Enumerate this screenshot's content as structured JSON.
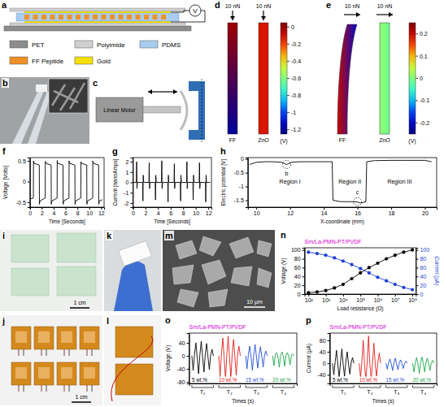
{
  "chart_data": [
    {
      "type": "line",
      "x_label": "Time [Seconds]",
      "y_label": "Voltage [Volts]",
      "xlim": [
        0,
        12.5
      ],
      "xticks": [
        0,
        2,
        4,
        6,
        8,
        10,
        12
      ],
      "ylim": [
        -0.62,
        0.58
      ],
      "yticks": [
        -0.5,
        0,
        0.5
      ],
      "x": [
        0,
        0.58,
        0.6,
        0.7,
        1.58,
        1.6,
        1.7,
        2.58,
        2.6,
        2.7,
        3.58,
        3.6,
        3.7,
        4.58,
        4.6,
        4.7,
        5.58,
        5.6,
        5.7,
        6.58,
        6.6,
        6.7,
        7.58,
        7.6,
        7.7,
        8.58,
        8.6,
        8.7,
        9.58,
        9.6,
        9.7,
        10.58,
        10.6,
        10.7,
        11.58,
        11.6,
        11.7,
        12.2
      ],
      "series": [
        {
          "color": "#000000",
          "values": [
            -0.42,
            -0.4,
            0.5,
            0.44,
            0.4,
            -0.55,
            -0.47,
            -0.4,
            0.49,
            0.44,
            0.4,
            -0.55,
            -0.47,
            -0.4,
            0.51,
            0.44,
            0.4,
            -0.55,
            -0.47,
            -0.4,
            0.5,
            0.44,
            0.4,
            -0.55,
            -0.47,
            -0.4,
            0.48,
            0.44,
            0.4,
            -0.55,
            -0.47,
            -0.4,
            0.5,
            0.44,
            0.4,
            -0.55,
            -0.47,
            -0.44
          ]
        }
      ]
    },
    {
      "type": "line",
      "x_label": "Time [Seconds]",
      "y_label": "Current [nanoAmps]",
      "xlim": [
        0,
        12.5
      ],
      "xticks": [
        0,
        2,
        4,
        6,
        8,
        10,
        12
      ],
      "ylim": [
        -2.4,
        2.4
      ],
      "yticks": [
        -2,
        -1,
        0,
        1,
        2
      ],
      "x": [
        0,
        0.55,
        0.6,
        0.65,
        0.72,
        1.55,
        1.6,
        1.65,
        1.72,
        2.55,
        2.6,
        2.65,
        2.72,
        3.55,
        3.6,
        3.65,
        3.72,
        4.55,
        4.6,
        4.65,
        4.72,
        5.55,
        5.6,
        5.65,
        5.72,
        6.55,
        6.6,
        6.65,
        6.72,
        7.55,
        7.6,
        7.65,
        7.72,
        8.55,
        8.6,
        8.65,
        8.72,
        9.55,
        9.6,
        9.65,
        9.72,
        10.55,
        10.6,
        10.65,
        10.72,
        11.55,
        11.6,
        11.65,
        11.72,
        12.3
      ],
      "series": [
        {
          "color": "#000000",
          "values": [
            0,
            0,
            2.0,
            -0.6,
            0,
            0,
            -1.8,
            0.7,
            0,
            0,
            1.9,
            -0.6,
            0,
            0,
            -1.7,
            0.7,
            0,
            0,
            2.1,
            -0.6,
            0,
            0,
            -1.9,
            0.7,
            0,
            0,
            1.8,
            -0.6,
            0,
            0,
            -1.8,
            0.7,
            0,
            0,
            2.0,
            -0.6,
            0,
            0,
            -1.7,
            0.7,
            0,
            0,
            1.9,
            -0.6,
            0,
            0,
            -1.9,
            0.7,
            0,
            0
          ]
        }
      ]
    },
    {
      "type": "line",
      "x_label": "X-coordinate (mm)",
      "y_label": "Electric potential [V]",
      "xlim": [
        9.5,
        20.7
      ],
      "xticks": [
        10,
        12,
        14,
        16,
        18,
        20
      ],
      "ylim": [
        -1.75,
        0.05
      ],
      "yticks": [
        -1.5,
        -1,
        -0.5,
        0
      ],
      "x": [
        9.6,
        10,
        10.5,
        11,
        11.5,
        11.8,
        12.1,
        12.5,
        13,
        13.5,
        14,
        14.5,
        14.55,
        15,
        15.5,
        16,
        16.2,
        16.5,
        16.55,
        17,
        18,
        19,
        20,
        20.4
      ],
      "series": [
        {
          "color": "#000000",
          "values": [
            -0.2,
            -0.12,
            -0.1,
            -0.1,
            -0.12,
            -0.2,
            -0.12,
            -0.1,
            -0.1,
            -0.1,
            -0.1,
            -0.1,
            -1.5,
            -1.55,
            -1.55,
            -1.56,
            -1.6,
            -1.55,
            -0.1,
            -0.06,
            -0.05,
            -0.05,
            -0.05,
            -0.1
          ]
        }
      ],
      "annotations": [
        {
          "text": "Region I",
          "x": 12,
          "y": -0.9
        },
        {
          "text": "Region II",
          "x": 15.55,
          "y": -0.9
        },
        {
          "text": "Region III",
          "x": 18.5,
          "y": -0.9
        }
      ],
      "highlights": [
        {
          "text": "b",
          "x": 11.8,
          "y": -0.2
        },
        {
          "text": "c",
          "x": 16,
          "y": -1.55
        }
      ]
    },
    {
      "type": "line",
      "title": "Sm/La-PMN-PT/PVDF",
      "x_label": "Load resistance (Ω)",
      "y_label": "Voltage (V)",
      "y2_label": "Current (μA)",
      "log": "x",
      "xlim": [
        60,
        160000000
      ],
      "xticks": [
        {
          "value": 100,
          "label": "10²"
        },
        {
          "value": 1000,
          "label": "10³"
        },
        {
          "value": 10000,
          "label": "10⁴"
        },
        {
          "value": 100000,
          "label": "10⁵"
        },
        {
          "value": 1000000,
          "label": "10⁶"
        },
        {
          "value": 10000000,
          "label": "10⁷"
        },
        {
          "value": 100000000,
          "label": "10⁸"
        }
      ],
      "ylim": [
        0,
        105
      ],
      "yticks": [
        0,
        20,
        40,
        60,
        80,
        100
      ],
      "y2lim": [
        0,
        105
      ],
      "y2ticks": [
        0,
        20,
        40,
        60,
        80,
        100
      ],
      "x": [
        100,
        316,
        1000,
        3162,
        10000,
        31623,
        100000,
        316228,
        1000000,
        3162278,
        10000000,
        31622777,
        100000000
      ],
      "series": [
        {
          "color": "#000000",
          "marker": "circle",
          "values": [
            3,
            5,
            8,
            14,
            22,
            35,
            48,
            60,
            70,
            80,
            88,
            95,
            100
          ]
        },
        {
          "color": "#1f3fd6",
          "marker": "circle",
          "axis": "y2",
          "values": [
            95,
            92,
            88,
            82,
            75,
            67,
            58,
            48,
            38,
            30,
            22,
            15,
            10
          ]
        }
      ]
    },
    {
      "type": "line",
      "title": "Sm/La-PMN-PT/PVDF",
      "x_label": "Times (s)",
      "y_label": "Voltage (V)",
      "tick_labels": "y",
      "xlim": [
        0,
        40
      ],
      "ylim": [
        -85,
        70
      ],
      "yticks": [
        -80,
        -40,
        0,
        40
      ],
      "segment_labels": [
        "T₁",
        "T₂",
        "T₃",
        "T₄"
      ],
      "series": [
        {
          "name": "5 wt.%",
          "color": "#000000",
          "x": [
            1,
            1.5,
            2,
            2.5,
            3,
            3.5,
            4,
            4.5,
            5,
            5.5,
            6,
            6.5,
            7,
            7.5,
            8,
            8.5,
            9
          ],
          "values": [
            0,
            -45,
            5,
            40,
            -5,
            -55,
            4,
            45,
            -3,
            -50,
            5,
            38,
            -4,
            -42,
            3,
            20,
            0
          ]
        },
        {
          "name": "10 wt.%",
          "color": "#e0201b",
          "x": [
            11,
            11.5,
            12,
            12.5,
            13,
            13.5,
            14,
            14.5,
            15,
            15.5,
            16,
            16.5,
            17,
            17.5,
            18,
            18.5,
            19
          ],
          "values": [
            0,
            -65,
            6,
            55,
            -6,
            -75,
            5,
            60,
            -5,
            -70,
            6,
            50,
            -5,
            -60,
            4,
            30,
            0
          ]
        },
        {
          "name": "15 wt.%",
          "color": "#1f4fd6",
          "x": [
            21,
            21.5,
            22,
            22.5,
            23,
            23.5,
            24,
            24.5,
            25,
            25.5,
            26,
            26.5,
            27,
            27.5,
            28,
            28.5,
            29
          ],
          "values": [
            0,
            -40,
            4,
            30,
            -4,
            -45,
            3,
            35,
            -3,
            -38,
            4,
            28,
            -3,
            -35,
            2,
            15,
            0
          ]
        },
        {
          "name": "20 wt.%",
          "color": "#1aa64a",
          "x": [
            31,
            31.5,
            32,
            32.5,
            33,
            33.5,
            34,
            34.5,
            35,
            35.5,
            36,
            36.5,
            37,
            37.5,
            38,
            38.5,
            39
          ],
          "values": [
            0,
            -30,
            3,
            10,
            -3,
            -35,
            2,
            12,
            -2,
            -32,
            3,
            10,
            -2,
            -28,
            2,
            6,
            0
          ]
        }
      ]
    },
    {
      "type": "line",
      "title": "Sm/La-PMN-PT/PVDF",
      "x_label": "Times (s)",
      "y_label": "Current (μA)",
      "tick_labels": "y",
      "xlim": [
        0,
        40
      ],
      "ylim": [
        -70,
        105
      ],
      "yticks": [
        -40,
        0,
        40,
        80
      ],
      "segment_labels": [
        "T₁",
        "T₂",
        "T₃",
        "T₄"
      ],
      "series": [
        {
          "name": "5 wt.%",
          "color": "#000000",
          "x": [
            1,
            1.5,
            2,
            2.5,
            3,
            3.5,
            4,
            4.5,
            5,
            5.5,
            6,
            6.5,
            7,
            7.5,
            8,
            8.5,
            9
          ],
          "values": [
            0,
            -40,
            5,
            45,
            -5,
            -50,
            4,
            50,
            -4,
            -45,
            5,
            40,
            -4,
            -38,
            3,
            20,
            0
          ]
        },
        {
          "name": "10 wt.%",
          "color": "#e0201b",
          "x": [
            11,
            11.5,
            12,
            12.5,
            13,
            13.5,
            14,
            14.5,
            15,
            15.5,
            16,
            16.5,
            17,
            17.5,
            18,
            18.5,
            19
          ],
          "values": [
            0,
            -50,
            6,
            80,
            -6,
            -60,
            6,
            95,
            -5,
            -55,
            6,
            70,
            -5,
            -45,
            4,
            35,
            0
          ]
        },
        {
          "name": "15 wt.%",
          "color": "#1f4fd6",
          "x": [
            21,
            21.5,
            22,
            22.5,
            23,
            23.5,
            24,
            24.5,
            25,
            25.5,
            26,
            26.5,
            27,
            27.5,
            28,
            28.5,
            29
          ],
          "values": [
            0,
            -20,
            2,
            15,
            -2,
            -25,
            2,
            18,
            -2,
            -22,
            2,
            12,
            -2,
            -18,
            1,
            8,
            0
          ]
        },
        {
          "name": "20 wt.%",
          "color": "#1aa64a",
          "x": [
            31,
            31.5,
            32,
            32.5,
            33,
            33.5,
            34,
            34.5,
            35,
            35.5,
            36,
            36.5,
            37,
            37.5,
            38,
            38.5,
            39
          ],
          "values": [
            0,
            -30,
            3,
            20,
            -3,
            -35,
            2,
            22,
            -2,
            -30,
            3,
            18,
            -2,
            -25,
            2,
            10,
            0
          ]
        }
      ]
    }
  ],
  "figure": {
    "chart_letters": [
      "f",
      "g",
      "h",
      "n",
      "o",
      "p"
    ],
    "a": {
      "letter": "a",
      "meter": "V",
      "legend": [
        {
          "label": "PET",
          "color": "#8c8c8c"
        },
        {
          "label": "Polyimide",
          "color": "#cfcfcf"
        },
        {
          "label": "PDMS",
          "color": "#a8cdee"
        },
        {
          "label": "FF Peptide",
          "color": "#f0902a"
        },
        {
          "label": "Gold",
          "color": "#f5e000"
        }
      ]
    },
    "b": {
      "letter": "b"
    },
    "c": {
      "letter": "c",
      "label": "Linear Motor"
    },
    "d": {
      "letter": "d",
      "forces": [
        "10 nN",
        "10 nN"
      ],
      "materials": [
        {
          "name": "FF",
          "values": [
            0,
            -1.2
          ]
        },
        {
          "name": "ZnO",
          "values": [
            -0.12,
            -0.12
          ]
        }
      ],
      "colorbar": {
        "range": [
          -1.25,
          0.05
        ],
        "ticks": [
          0,
          -0.2,
          -0.4,
          -0.6,
          -0.8,
          -1,
          -1.2
        ],
        "unit": "(V)"
      }
    },
    "e": {
      "letter": "e",
      "forces": [
        "10 nN",
        "10 nN"
      ],
      "materials": [
        {
          "name": "FF",
          "values": [
            0.2,
            -0.2
          ]
        },
        {
          "name": "ZnO",
          "values": [
            0.01,
            -0.01
          ]
        }
      ],
      "colorbar": {
        "range": [
          -0.25,
          0.25
        ],
        "ticks": [
          0.2,
          0.1,
          0,
          -0.1,
          -0.2
        ],
        "unit": "(V)"
      }
    },
    "i": {
      "letter": "i",
      "scale": "1 cm"
    },
    "j": {
      "letter": "j",
      "scale": "1 cm"
    },
    "k": {
      "letter": "k"
    },
    "l": {
      "letter": "l"
    },
    "m": {
      "letter": "m",
      "scale": "10 μm"
    }
  }
}
